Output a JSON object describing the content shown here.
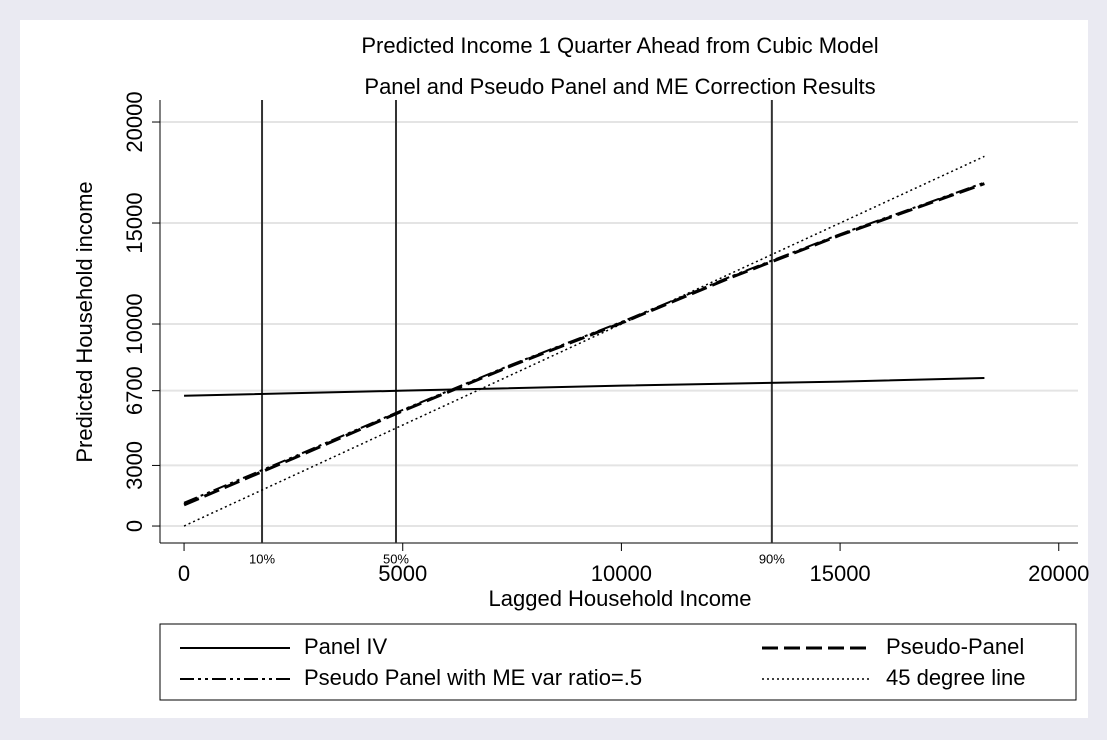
{
  "chart_data": {
    "type": "line",
    "title": [
      "Predicted Income 1 Quarter Ahead from Cubic Model",
      "Panel and Pseudo Panel and ME Correction Results"
    ],
    "x_label": "Lagged Household Income",
    "y_label": "Predicted Household income",
    "xlim": [
      -550,
      20440
    ],
    "ylim": [
      -840,
      21090
    ],
    "xticks": [
      0,
      5000,
      10000,
      15000,
      20000
    ],
    "yticks": [
      0,
      3000,
      6700,
      10000,
      15000,
      20000
    ],
    "grid": true,
    "reference_lines": [
      {
        "value": 1783,
        "label": "10%"
      },
      {
        "value": 4846,
        "label": "50%"
      },
      {
        "value": 13440,
        "label": "90%"
      }
    ],
    "series": [
      {
        "name": "Panel IV",
        "color": "#000000",
        "line_style": "solid",
        "x": [
          0,
          5000,
          10000,
          15000,
          18300
        ],
        "values": [
          6450,
          6700,
          6950,
          7150,
          7330
        ]
      },
      {
        "name": "Pseudo-Panel",
        "color": "#000000",
        "line_style": "dash",
        "x": [
          0,
          2500,
          5000,
          7500,
          10000,
          12500,
          15000,
          18300
        ],
        "values": [
          1050,
          3350,
          5700,
          7950,
          10050,
          12300,
          14400,
          16950
        ]
      },
      {
        "name": "Pseudo Panel with ME var ratio=.5",
        "color": "#000000",
        "line_style": "dashdot",
        "x": [
          0,
          2500,
          5000,
          7500,
          10000,
          12500,
          15000,
          18300
        ],
        "values": [
          1150,
          3420,
          5750,
          8000,
          10100,
          12350,
          14450,
          17000
        ]
      },
      {
        "name": "45 degree line",
        "color": "#000000",
        "line_style": "dot",
        "x": [
          0,
          18300
        ],
        "values": [
          0,
          18300
        ]
      }
    ]
  }
}
